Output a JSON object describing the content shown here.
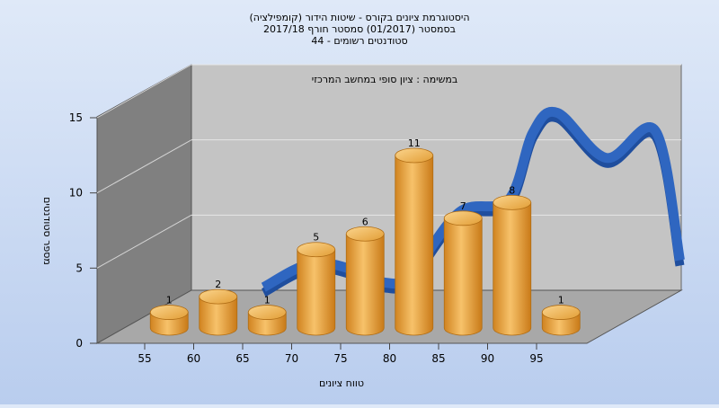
{
  "chart_data": {
    "type": "bar",
    "title_lines": [
      "היסטוגרמת ציונים בקורס - שיטות הידור (קומפילציה)",
      "בסמסטר  (01/2017)  סמסטר חורף  2017/18",
      "סטודנטים רשומים - 44"
    ],
    "subtitle": "במשימה : ציון סופי במחשב המרכזי",
    "xlabel": "טווח ציונים",
    "ylabel": "מספר סטודנטים",
    "x_ticks": [
      "55",
      "60",
      "65",
      "70",
      "75",
      "80",
      "85",
      "90",
      "95"
    ],
    "y_ticks": [
      "0",
      "5",
      "10",
      "15"
    ],
    "ylim": [
      0,
      15
    ],
    "grid": true,
    "bars": [
      {
        "center": 57.5,
        "value": 1
      },
      {
        "center": 62.5,
        "value": 2
      },
      {
        "center": 67.5,
        "value": 1
      },
      {
        "center": 72.5,
        "value": 5
      },
      {
        "center": 77.5,
        "value": 6
      },
      {
        "center": 82.5,
        "value": 11
      },
      {
        "center": 87.5,
        "value": 7
      },
      {
        "center": 92.5,
        "value": 8
      },
      {
        "center": 97.5,
        "value": 1
      }
    ],
    "curve": {
      "x": [
        57.5,
        62.5,
        67.5,
        70,
        72.5,
        77.5,
        82.5,
        85,
        87.5,
        92.5,
        97.5,
        100
      ],
      "y": [
        0.2,
        1.8,
        1.2,
        0.5,
        1.0,
        5.2,
        6.0,
        10.5,
        11.8,
        8.8,
        10.6,
        2.0
      ]
    },
    "colors": {
      "bar": "#f0a842",
      "curve": "#2f66c0",
      "back_wall": "#c4c4c4",
      "side_wall": "#808080",
      "floor": "#a8a8a8"
    }
  }
}
